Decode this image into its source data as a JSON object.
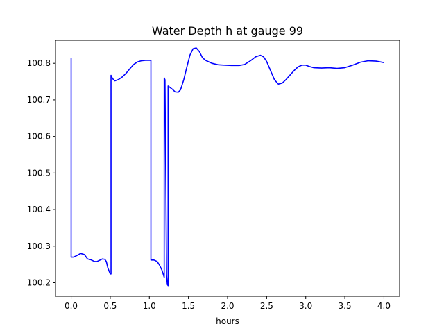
{
  "chart_data": {
    "type": "line",
    "title": "Water Depth h at gauge 99",
    "xlabel": "hours",
    "ylabel": "",
    "xlim": [
      -0.2,
      4.2
    ],
    "ylim": [
      100.163,
      100.863
    ],
    "xticks": [
      0.0,
      0.5,
      1.0,
      1.5,
      2.0,
      2.5,
      3.0,
      3.5,
      4.0
    ],
    "xtick_labels": [
      "0.0",
      "0.5",
      "1.0",
      "1.5",
      "2.0",
      "2.5",
      "3.0",
      "3.5",
      "4.0"
    ],
    "yticks": [
      100.2,
      100.3,
      100.4,
      100.5,
      100.6,
      100.7,
      100.8
    ],
    "ytick_labels": [
      "100.2",
      "100.3",
      "100.4",
      "100.5",
      "100.6",
      "100.7",
      "100.8"
    ],
    "grid": false,
    "legend": "none",
    "series": [
      {
        "color": "#0000ff",
        "x": [
          0.0,
          0.0,
          0.03,
          0.08,
          0.12,
          0.17,
          0.21,
          0.25,
          0.3,
          0.33,
          0.37,
          0.4,
          0.43,
          0.45,
          0.47,
          0.5,
          0.51,
          0.51,
          0.53,
          0.56,
          0.6,
          0.65,
          0.7,
          0.75,
          0.8,
          0.85,
          0.9,
          0.95,
          1.0,
          1.02,
          1.02,
          1.06,
          1.1,
          1.13,
          1.16,
          1.19,
          1.19,
          1.2,
          1.22,
          1.23,
          1.24,
          1.24,
          1.27,
          1.3,
          1.33,
          1.37,
          1.4,
          1.44,
          1.48,
          1.52,
          1.56,
          1.6,
          1.64,
          1.68,
          1.72,
          1.76,
          1.8,
          1.88,
          1.95,
          2.05,
          2.15,
          2.22,
          2.3,
          2.36,
          2.42,
          2.46,
          2.5,
          2.55,
          2.6,
          2.65,
          2.7,
          2.75,
          2.8,
          2.85,
          2.9,
          2.95,
          3.0,
          3.05,
          3.1,
          3.2,
          3.3,
          3.4,
          3.5,
          3.6,
          3.7,
          3.8,
          3.9,
          4.0
        ],
        "y": [
          100.815,
          100.27,
          100.27,
          100.275,
          100.28,
          100.277,
          100.265,
          100.263,
          100.258,
          100.258,
          100.262,
          100.265,
          100.264,
          100.258,
          100.24,
          100.224,
          100.224,
          100.767,
          100.758,
          100.752,
          100.755,
          100.762,
          100.772,
          100.785,
          100.797,
          100.804,
          100.807,
          100.808,
          100.808,
          100.808,
          100.262,
          100.262,
          100.258,
          100.248,
          100.235,
          100.215,
          100.76,
          100.755,
          100.22,
          100.195,
          100.192,
          100.738,
          100.733,
          100.728,
          100.722,
          100.721,
          100.728,
          100.755,
          100.79,
          100.823,
          100.84,
          100.842,
          100.832,
          100.815,
          100.808,
          100.804,
          100.8,
          100.796,
          100.795,
          100.794,
          100.794,
          100.797,
          100.808,
          100.818,
          100.822,
          100.818,
          100.805,
          100.78,
          100.755,
          100.743,
          100.746,
          100.756,
          100.768,
          100.78,
          100.79,
          100.795,
          100.795,
          100.791,
          100.788,
          100.787,
          100.788,
          100.786,
          100.788,
          100.795,
          100.803,
          100.807,
          100.806,
          100.802
        ]
      }
    ]
  }
}
